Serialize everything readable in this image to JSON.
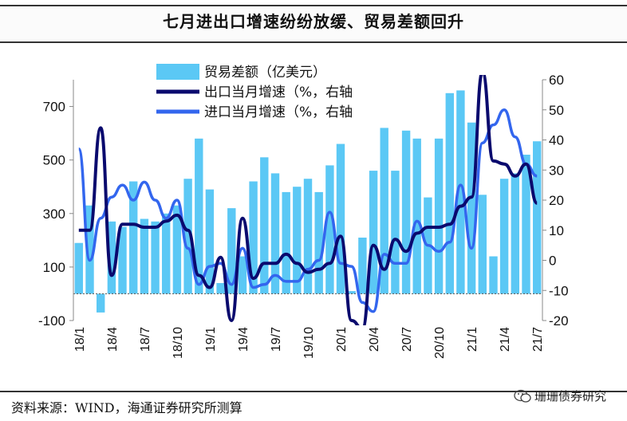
{
  "title": "七月进出口增速纷纷放缓、贸易差额回升",
  "source": "资料来源：WIND，海通证券研究所测算",
  "watermark": "珊珊债券研究",
  "colors": {
    "bar": "#5BC8F5",
    "export": "#0A0A6E",
    "import": "#3366EE",
    "axis": "#888888"
  },
  "chart_data": {
    "type": "bar+line",
    "x_tick_labels": [
      "18/1",
      "18/4",
      "18/7",
      "18/10",
      "19/1",
      "19/4",
      "19/7",
      "19/10",
      "20/1",
      "20/4",
      "20/7",
      "20/10",
      "21/1",
      "21/4",
      "21/7"
    ],
    "left_axis": {
      "ylim": [
        -100,
        800
      ],
      "ticks": [
        "700",
        "500",
        "300",
        "100",
        "-100"
      ]
    },
    "right_axis": {
      "ylim": [
        -20,
        60
      ],
      "ticks": [
        "60",
        "50",
        "40",
        "30",
        "20",
        "10",
        "0",
        "-10",
        "-20"
      ]
    },
    "legend": [
      "贸易差额（亿美元）",
      "出口当月增速（%，右轴",
      "进口当月增速（%，右轴"
    ],
    "series": [
      {
        "name": "贸易差额（亿美元）",
        "type": "bar",
        "axis": "left",
        "values": [
          190,
          330,
          -70,
          270,
          250,
          420,
          280,
          270,
          300,
          330,
          430,
          580,
          390,
          40,
          320,
          140,
          420,
          510,
          450,
          380,
          400,
          430,
          380,
          480,
          560,
          10,
          210,
          460,
          620,
          460,
          610,
          580,
          360,
          580,
          750,
          760,
          640,
          370,
          140,
          430,
          450,
          520,
          570
        ]
      },
      {
        "name": "出口当月增速（%，右轴",
        "type": "line",
        "axis": "right",
        "values": [
          10,
          10,
          44,
          -5,
          12,
          12,
          11,
          11,
          13,
          15,
          10,
          -5,
          -9,
          1,
          -20,
          14,
          -6,
          -1,
          -1,
          2,
          -1,
          -4,
          -3,
          -1,
          8,
          -20,
          -25,
          5,
          -3,
          7,
          3,
          9,
          11,
          11,
          12,
          18,
          21,
          70,
          33,
          32,
          28,
          32,
          19
        ]
      },
      {
        "name": "进口当月增速（%，右轴",
        "type": "line",
        "axis": "right",
        "values": [
          37,
          0,
          14,
          21,
          25,
          20,
          26,
          20,
          14,
          20,
          4,
          -8,
          -2,
          -1,
          -8,
          4,
          -9,
          -8,
          -5,
          -7,
          -7,
          -3,
          0,
          16,
          -1,
          -2,
          -14,
          -17,
          2,
          -1,
          -1,
          13,
          5,
          3,
          6,
          25,
          4,
          39,
          45,
          50,
          41,
          32,
          28
        ]
      }
    ]
  }
}
